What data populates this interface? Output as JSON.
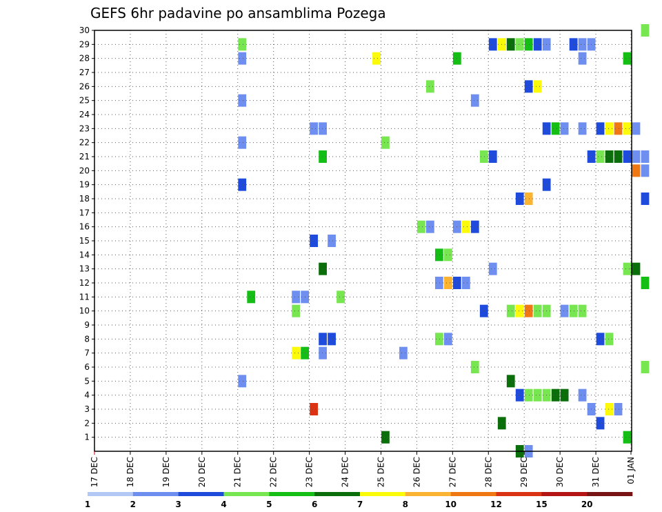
{
  "chart_data": {
    "type": "heatmap",
    "title": "GEFS 6hr padavine po ansamblima Pozega",
    "xlabel": "",
    "ylabel": "",
    "x_tick_labels": [
      "17 DEC",
      "18 DEC",
      "19 DEC",
      "20 DEC",
      "21 DEC",
      "22 DEC",
      "23 DEC",
      "24 DEC",
      "25 DEC",
      "26 DEC",
      "27 DEC",
      "28 DEC",
      "29 DEC",
      "30 DEC",
      "31 DEC",
      "01 JAN"
    ],
    "y_tick_labels": [
      "1",
      "2",
      "3",
      "4",
      "5",
      "6",
      "7",
      "8",
      "9",
      "10",
      "11",
      "12",
      "13",
      "14",
      "15",
      "16",
      "17",
      "18",
      "19",
      "20",
      "21",
      "22",
      "23",
      "24",
      "25",
      "26",
      "27",
      "28",
      "29",
      "30"
    ],
    "x_unit": "6-hour step (0 = 17 DEC 00z, 4 steps per day)",
    "ylim": [
      0,
      30
    ],
    "grid": true,
    "legend_position": "bottom",
    "legend": {
      "colors": [
        "#b4c8f5",
        "#6e8ff0",
        "#1e4bdc",
        "#78e650",
        "#14be14",
        "#0a6e0a",
        "#fafa0a",
        "#fab432",
        "#f07814",
        "#dc3214",
        "#b41414",
        "#781414"
      ],
      "labels": [
        "1",
        "2",
        "3",
        "4",
        "5",
        "6",
        "7",
        "8",
        "10",
        "12",
        "15",
        "20"
      ]
    },
    "cells": [
      [
        16,
        29,
        3
      ],
      [
        16,
        28,
        1
      ],
      [
        16,
        25,
        1
      ],
      [
        16,
        22,
        1
      ],
      [
        16,
        19,
        2
      ],
      [
        16,
        5,
        1
      ],
      [
        17,
        11,
        4
      ],
      [
        22,
        11,
        1
      ],
      [
        23,
        11,
        1
      ],
      [
        22,
        10,
        3
      ],
      [
        22,
        7,
        6
      ],
      [
        23,
        7,
        4
      ],
      [
        24,
        23,
        1
      ],
      [
        25,
        23,
        1
      ],
      [
        24,
        15,
        2
      ],
      [
        24,
        3,
        9
      ],
      [
        25,
        21,
        4
      ],
      [
        25,
        13,
        5
      ],
      [
        25,
        8,
        2
      ],
      [
        26,
        8,
        2
      ],
      [
        25,
        7,
        1
      ],
      [
        26,
        15,
        1
      ],
      [
        27,
        11,
        3
      ],
      [
        31,
        28,
        6
      ],
      [
        32,
        22,
        3
      ],
      [
        32,
        1,
        5
      ],
      [
        34,
        7,
        1
      ],
      [
        36,
        16,
        3
      ],
      [
        37,
        26,
        3
      ],
      [
        37,
        16,
        1
      ],
      [
        38,
        14,
        4
      ],
      [
        38,
        12,
        1
      ],
      [
        38,
        8,
        3
      ],
      [
        39,
        14,
        3
      ],
      [
        39,
        12,
        7
      ],
      [
        39,
        8,
        1
      ],
      [
        40,
        28,
        4
      ],
      [
        40,
        16,
        1
      ],
      [
        40,
        12,
        2
      ],
      [
        41,
        16,
        6
      ],
      [
        41,
        12,
        1
      ],
      [
        42,
        25,
        1
      ],
      [
        42,
        16,
        2
      ],
      [
        42,
        6,
        3
      ],
      [
        43,
        21,
        3
      ],
      [
        43,
        10,
        2
      ],
      [
        44,
        29,
        2
      ],
      [
        44,
        21,
        2
      ],
      [
        44,
        13,
        1
      ],
      [
        45,
        29,
        6
      ],
      [
        45,
        2,
        5
      ],
      [
        46,
        29,
        5
      ],
      [
        46,
        10,
        3
      ],
      [
        46,
        5,
        5
      ],
      [
        47,
        29,
        3
      ],
      [
        47,
        18,
        2
      ],
      [
        47,
        10,
        6
      ],
      [
        47,
        4,
        2
      ],
      [
        47,
        0,
        5
      ],
      [
        48,
        29,
        4
      ],
      [
        48,
        26,
        2
      ],
      [
        48,
        18,
        7
      ],
      [
        48,
        10,
        8
      ],
      [
        48,
        4,
        3
      ],
      [
        48,
        0,
        1
      ],
      [
        49,
        29,
        2
      ],
      [
        49,
        26,
        6
      ],
      [
        49,
        10,
        3
      ],
      [
        49,
        4,
        3
      ],
      [
        50,
        29,
        1
      ],
      [
        50,
        23,
        2
      ],
      [
        50,
        19,
        2
      ],
      [
        50,
        10,
        3
      ],
      [
        50,
        4,
        3
      ],
      [
        51,
        23,
        4
      ],
      [
        51,
        4,
        5
      ],
      [
        52,
        23,
        1
      ],
      [
        52,
        10,
        1
      ],
      [
        52,
        4,
        5
      ],
      [
        53,
        29,
        2
      ],
      [
        53,
        10,
        3
      ],
      [
        54,
        29,
        1
      ],
      [
        54,
        28,
        1
      ],
      [
        54,
        23,
        1
      ],
      [
        54,
        10,
        3
      ],
      [
        54,
        4,
        1
      ],
      [
        55,
        29,
        1
      ],
      [
        55,
        21,
        2
      ],
      [
        55,
        3,
        1
      ],
      [
        56,
        23,
        2
      ],
      [
        56,
        21,
        3
      ],
      [
        56,
        8,
        2
      ],
      [
        56,
        2,
        2
      ],
      [
        57,
        23,
        6
      ],
      [
        57,
        21,
        5
      ],
      [
        57,
        8,
        3
      ],
      [
        57,
        3,
        6
      ],
      [
        58,
        23,
        8
      ],
      [
        58,
        21,
        5
      ],
      [
        58,
        3,
        1
      ],
      [
        59,
        28,
        4
      ],
      [
        59,
        23,
        6
      ],
      [
        59,
        21,
        2
      ],
      [
        59,
        13,
        3
      ],
      [
        59,
        1,
        4
      ],
      [
        60,
        23,
        1
      ],
      [
        60,
        21,
        1
      ],
      [
        60,
        20,
        8
      ],
      [
        60,
        13,
        5
      ],
      [
        61,
        30,
        3
      ],
      [
        61,
        21,
        1
      ],
      [
        61,
        20,
        1
      ],
      [
        61,
        18,
        2
      ],
      [
        61,
        12,
        4
      ],
      [
        61,
        6,
        3
      ]
    ]
  }
}
